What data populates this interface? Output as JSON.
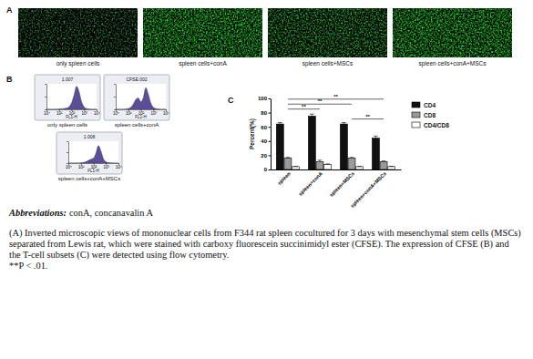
{
  "panel_labels": [
    "A",
    "B",
    "C"
  ],
  "panel_a": {
    "labels": [
      "only spleen cells",
      "spleen cells+conA",
      "spleen cells+MSCs",
      "spleen cells+conA+MSCs"
    ]
  },
  "chart_data": [
    {
      "type": "area",
      "title": "1.007",
      "subtitle": "only spleen cells",
      "x_label": "FL1-H",
      "x": [
        1,
        1.585,
        2.512,
        3.981,
        6.31,
        10,
        15.85,
        25.12,
        39.81,
        63.1,
        100,
        158.5,
        251.2,
        398.1,
        631,
        1000,
        1585,
        2512,
        3981,
        6310,
        10000
      ],
      "values": [
        0,
        0,
        0,
        0,
        0,
        1,
        2,
        3,
        5,
        10,
        25,
        55,
        90,
        70,
        30,
        10,
        3,
        1,
        0,
        0,
        0
      ],
      "color": "#5b4e96",
      "log": "x",
      "xlim": [
        1,
        10000
      ],
      "xticks": [
        {
          "value": 1,
          "label": "10⁰"
        },
        {
          "value": 10,
          "label": "10¹"
        },
        {
          "value": 100,
          "label": "10²"
        },
        {
          "value": 1000,
          "label": "10³"
        },
        {
          "value": 10000,
          "label": "10⁴"
        }
      ],
      "ylim": [
        0,
        100
      ],
      "yticks": [
        0,
        50,
        100
      ],
      "tick_labels": "x"
    },
    {
      "type": "area",
      "title": "CFSE.002",
      "subtitle": "spleen cells+conA",
      "x_label": "FL1-H",
      "x": [
        1,
        1.585,
        2.512,
        3.981,
        6.31,
        10,
        15.85,
        25.12,
        39.81,
        63.1,
        100,
        158.5,
        251.2,
        398.1,
        631,
        1000,
        1585,
        2512,
        3981,
        6310,
        10000
      ],
      "values": [
        0,
        0,
        0,
        0,
        1,
        3,
        8,
        20,
        38,
        45,
        30,
        45,
        85,
        60,
        25,
        8,
        3,
        1,
        0,
        0,
        0
      ],
      "color": "#5b4e96",
      "log": "x",
      "xlim": [
        1,
        10000
      ],
      "xticks": [
        {
          "value": 1,
          "label": "10⁰"
        },
        {
          "value": 10,
          "label": "10¹"
        },
        {
          "value": 100,
          "label": "10²"
        },
        {
          "value": 1000,
          "label": "10³"
        },
        {
          "value": 10000,
          "label": "10⁴"
        }
      ],
      "ylim": [
        0,
        100
      ],
      "yticks": [
        0,
        50,
        100
      ],
      "tick_labels": "x"
    },
    {
      "type": "area",
      "title": "1.008",
      "subtitle": "spleen cells+conA+MSCs",
      "x_label": "FL1-H",
      "x": [
        1,
        1.585,
        2.512,
        3.981,
        6.31,
        10,
        15.85,
        25.12,
        39.81,
        63.1,
        100,
        158.5,
        251.2,
        398.1,
        631,
        1000,
        1585,
        2512,
        3981,
        6310,
        10000
      ],
      "values": [
        0,
        0,
        0,
        0,
        0,
        1,
        3,
        6,
        12,
        18,
        22,
        45,
        80,
        55,
        20,
        6,
        2,
        1,
        0,
        0,
        0
      ],
      "color": "#5b4e96",
      "log": "x",
      "xlim": [
        1,
        10000
      ],
      "xticks": [
        {
          "value": 1,
          "label": "10⁰"
        },
        {
          "value": 10,
          "label": "10¹"
        },
        {
          "value": 100,
          "label": "10²"
        },
        {
          "value": 1000,
          "label": "10³"
        },
        {
          "value": 10000,
          "label": "10⁴"
        }
      ],
      "ylim": [
        0,
        100
      ],
      "yticks": [
        0,
        50,
        100
      ],
      "tick_labels": "x"
    },
    {
      "type": "bar",
      "categories": [
        "spleen",
        "spleen+conA",
        "spleen+MSCs",
        "spleen+conA+MSCs"
      ],
      "series": [
        {
          "name": "CD4",
          "color": "#111111",
          "values": [
            64,
            75,
            64,
            44
          ],
          "errors": [
            2,
            3,
            2,
            3
          ]
        },
        {
          "name": "CD8",
          "color": "#9a9a9a",
          "values": [
            16,
            11,
            16,
            11
          ],
          "errors": [
            1,
            2,
            1,
            1
          ]
        },
        {
          "name": "CD4/CD8",
          "color": "#ffffff",
          "values": [
            4,
            7,
            4,
            4
          ],
          "errors": [
            0.3,
            0.8,
            0.3,
            0.5
          ]
        }
      ],
      "y_label": "Percent(%)",
      "ylim": [
        0,
        100
      ],
      "yticks": [
        0,
        20,
        40,
        60,
        80,
        100
      ],
      "legend": "right",
      "annotations": [
        {
          "text": "**",
          "from": "spleen",
          "to": "spleen+conA+MSCs",
          "y": 99
        },
        {
          "text": "**",
          "from": "spleen",
          "to": "spleen+MSCs",
          "y": 92
        },
        {
          "text": "**",
          "from": "spleen",
          "to": "spleen+conA",
          "y": 85
        },
        {
          "text": "**",
          "from": "spleen+MSCs",
          "to": "spleen+conA+MSCs",
          "y": 71
        }
      ]
    }
  ],
  "caption": {
    "abbreviations_label": "Abbreviations:",
    "abbreviations": "conA, concanavalin A",
    "text": "(A) Inverted microscopic views of mononuclear cells from F344 rat spleen cocultured for 3 days with mesenchymal stem cells (MSCs) separated from Lewis rat, which were stained with carboxy fluorescein succinimidyl ester (CFSE). The expression of CFSE (B) and the T-cell subsets (C) were detected using flow cytometry.",
    "note": "**P < .01."
  }
}
